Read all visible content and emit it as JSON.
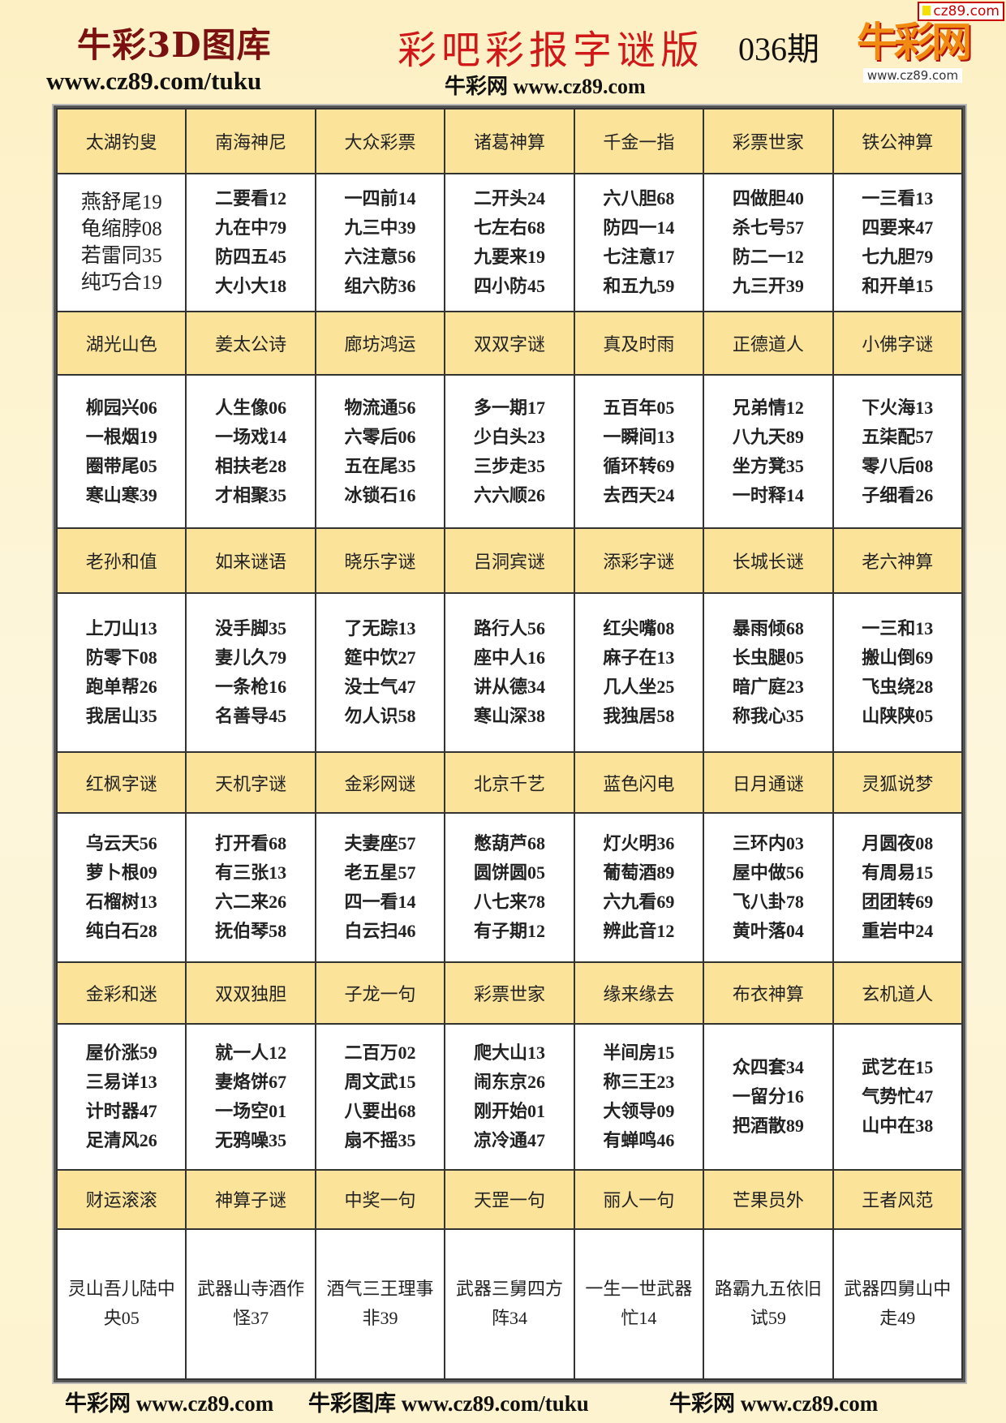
{
  "header": {
    "brand": "牛彩3D图库",
    "brand_url": "www.cz89.com/tuku",
    "title": "彩吧彩报字谜版",
    "issue": "036期",
    "sub_url": "牛彩网 www.cz89.com",
    "logo_text": "牛彩网",
    "logo_url": "www.cz89.com",
    "corner_badge": "cz89.com"
  },
  "colors": {
    "header_cell": "#fbe39a",
    "title_red": "#d01818",
    "brand_maroon": "#7a1010"
  },
  "table": {
    "sections": [
      {
        "names": [
          "太湖钓叟",
          "南海神尼",
          "大众彩票",
          "诸葛神算",
          "千金一指",
          "彩票世家",
          "铁公神算"
        ],
        "cells": [
          [
            "燕舒尾19",
            "龟缩脖08",
            "若雷同35",
            "纯巧合19"
          ],
          [
            "二要看12",
            "九在中79",
            "防四五45",
            "大小大18"
          ],
          [
            "一四前14",
            "九三中39",
            "六注意56",
            "组六防36"
          ],
          [
            "二开头24",
            "七左右68",
            "九要来19",
            "四小防45"
          ],
          [
            "六八胆68",
            "防四一14",
            "七注意17",
            "和五九59"
          ],
          [
            "四做胆40",
            "杀七号57",
            "防二一12",
            "九三开39"
          ],
          [
            "一三看13",
            "四要来47",
            "七九胆79",
            "和开单15"
          ]
        ]
      },
      {
        "names": [
          "湖光山色",
          "姜太公诗",
          "廊坊鸿运",
          "双双字谜",
          "真及时雨",
          "正德道人",
          "小佛字谜"
        ],
        "cells": [
          [
            "柳园兴06",
            "一根烟19",
            "圈带尾05",
            "寒山寒39"
          ],
          [
            "人生像06",
            "一场戏14",
            "相扶老28",
            "才相聚35"
          ],
          [
            "物流通56",
            "六零后06",
            "五在尾35",
            "冰锁石16"
          ],
          [
            "多一期17",
            "少白头23",
            "三步走35",
            "六六顺26"
          ],
          [
            "五百年05",
            "一瞬间13",
            "循环转69",
            "去西天24"
          ],
          [
            "兄弟情12",
            "八九天89",
            "坐方凳35",
            "一时释14"
          ],
          [
            "下火海13",
            "五柒配57",
            "零八后08",
            "子细看26"
          ]
        ]
      },
      {
        "names": [
          "老孙和值",
          "如来谜语",
          "晓乐字谜",
          "吕洞宾谜",
          "添彩字谜",
          "长城长谜",
          "老六神算"
        ],
        "cells": [
          [
            "上刀山13",
            "防零下08",
            "跑单帮26",
            "我居山35"
          ],
          [
            "没手脚35",
            "妻儿久79",
            "一条枪16",
            "名善导45"
          ],
          [
            "了无踪13",
            "筵中饮27",
            "没士气47",
            "勿人识58"
          ],
          [
            "路行人56",
            "座中人16",
            "讲从德34",
            "寒山深38"
          ],
          [
            "红尖嘴08",
            "麻子在13",
            "几人坐25",
            "我独居58"
          ],
          [
            "暴雨倾68",
            "长虫腿05",
            "暗广庭23",
            "称我心35"
          ],
          [
            "一三和13",
            "搬山倒69",
            "飞虫绕28",
            "山陕陕05"
          ]
        ]
      },
      {
        "names": [
          "红枫字谜",
          "天机字谜",
          "金彩网谜",
          "北京千艺",
          "蓝色闪电",
          "日月通谜",
          "灵狐说梦"
        ],
        "cells": [
          [
            "乌云天56",
            "萝卜根09",
            "石榴树13",
            "纯白石28"
          ],
          [
            "打开看68",
            "有三张13",
            "六二来26",
            "抚伯琴58"
          ],
          [
            "夫妻座57",
            "老五星57",
            "四一看14",
            "白云扫46"
          ],
          [
            "憋葫芦68",
            "圆饼圆05",
            "八七来78",
            "有子期12"
          ],
          [
            "灯火明36",
            "葡萄酒89",
            "六九看69",
            "辨此音12"
          ],
          [
            "三环内03",
            "屋中做56",
            "飞八卦78",
            "黄叶落04"
          ],
          [
            "月圆夜08",
            "有周易15",
            "团团转69",
            "重岩中24"
          ]
        ]
      },
      {
        "names": [
          "金彩和迷",
          "双双独胆",
          "子龙一句",
          "彩票世家",
          "缘来缘去",
          "布衣神算",
          "玄机道人"
        ],
        "cells": [
          [
            "屋价涨59",
            "三易详13",
            "计时器47",
            "足清风26"
          ],
          [
            "就一人12",
            "妻烙饼67",
            "一场空01",
            "无鸦噪35"
          ],
          [
            "二百万02",
            "周文武15",
            "八要出68",
            "扇不摇35"
          ],
          [
            "爬大山13",
            "闹东京26",
            "刚开始01",
            "凉冷通47"
          ],
          [
            "半间房15",
            "称三王23",
            "大领导09",
            "有蝉鸣46"
          ],
          [
            "众四套34",
            "一留分16",
            "把酒散89"
          ],
          [
            "武艺在15",
            "气势忙47",
            "山中在38"
          ]
        ]
      },
      {
        "names": [
          "财运滚滚",
          "神算子谜",
          "中奖一句",
          "天罡一句",
          "丽人一句",
          "芒果员外",
          "王者风范"
        ],
        "cells": [
          [
            "灵山吾儿陆中",
            "央05"
          ],
          [
            "武器山寺酒作",
            "怪37"
          ],
          [
            "酒气三王理事",
            "非39"
          ],
          [
            "武器三舅四方",
            "阵34"
          ],
          [
            "一生一世武器",
            "忙14"
          ],
          [
            "路霸九五依旧",
            "试59"
          ],
          [
            "武器四舅山中",
            "走49"
          ]
        ]
      }
    ]
  },
  "footer": {
    "left": "牛彩网 www.cz89.com",
    "middle": "牛彩图库 www.cz89.com/tuku",
    "right": "牛彩网 www.cz89.com"
  }
}
